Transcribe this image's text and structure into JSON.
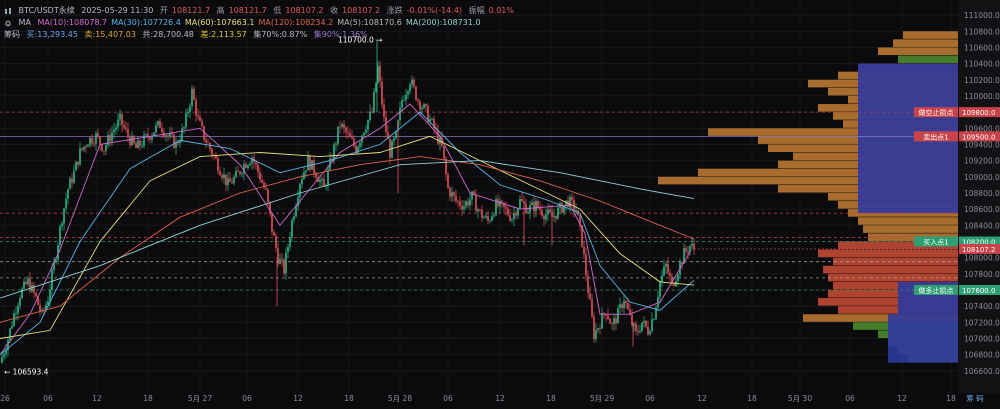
{
  "header": {
    "symbol": "BTC/USDT永续",
    "datetime": "2025-05-29 11:30",
    "open_label": "开",
    "open": "108121.7",
    "high_label": "高",
    "high": "108121.7",
    "low_label": "低",
    "low": "108107.2",
    "close_label": "收",
    "close": "108107.2",
    "change_label": "涨跌",
    "change": "-0.01%(-14.4)",
    "amp_label": "振幅",
    "amp": "0.01%"
  },
  "ma_row": {
    "icon": "bell-icon",
    "label": "MA",
    "items": [
      {
        "text": "MA(10):108078.7",
        "color": "#d36ad0"
      },
      {
        "text": "MA(30):107726.4",
        "color": "#58b6e8"
      },
      {
        "text": "MA(60):107663.1",
        "color": "#e6e07a"
      },
      {
        "text": "MA(120):108234.2",
        "color": "#e0614a"
      },
      {
        "text": "MA(5):108170.6",
        "color": "#b8b8b8"
      },
      {
        "text": "MA(200):108731.0",
        "color": "#8fd3d6"
      }
    ]
  },
  "chip_row": {
    "label": "筹码",
    "buy": "买:13,293.45",
    "sell": "卖:15,407.03",
    "total": "共:28,700.48",
    "diff": "差:2,113.57",
    "c70": "集70%:0.87%",
    "c90": "集90%:1.36%"
  },
  "annotations": {
    "high_marker": "110700.0",
    "low_marker": "← 106593.4"
  },
  "price_tags": [
    {
      "text": "做空止损点",
      "price": 109800,
      "color": "#c9434a",
      "value": "109800.0"
    },
    {
      "text": "卖出点1",
      "price": 109500,
      "color": "#c9434a",
      "value": "109500.0"
    },
    {
      "text": "买入点1",
      "price": 108200,
      "color": "#2e9e74",
      "value": "108200.0"
    },
    {
      "text": "",
      "price": 108107.2,
      "color": "#c9434a",
      "value": "108107.2"
    },
    {
      "text": "做多止损点",
      "price": 107600,
      "color": "#2e9e74",
      "value": "107600.0"
    }
  ],
  "bottom_right_label": "筹 码",
  "chart_data": {
    "type": "candlestick",
    "y_axis": {
      "min": 106400,
      "max": 111100,
      "ticks": [
        106600,
        106800,
        107000,
        107200,
        107400,
        107600,
        107800,
        108000,
        108200,
        108400,
        108600,
        108800,
        109000,
        109200,
        109400,
        109600,
        109800,
        110000,
        110200,
        110400,
        110600,
        110800,
        111000
      ]
    },
    "x_axis": {
      "labels": [
        "26",
        "06",
        "12",
        "18",
        "5月 27",
        "06",
        "12",
        "18",
        "5月 28",
        "06",
        "12",
        "18",
        "5月 29",
        "06",
        "12",
        "18",
        "5月 30",
        "06",
        "12",
        "18"
      ]
    },
    "close_path": [
      [
        0,
        106700
      ],
      [
        8,
        107000
      ],
      [
        14,
        107300
      ],
      [
        20,
        107550
      ],
      [
        28,
        107700
      ],
      [
        36,
        107500
      ],
      [
        42,
        107280
      ],
      [
        48,
        107500
      ],
      [
        56,
        108050
      ],
      [
        62,
        108500
      ],
      [
        68,
        108850
      ],
      [
        74,
        109050
      ],
      [
        80,
        109300
      ],
      [
        88,
        109450
      ],
      [
        96,
        109500
      ],
      [
        104,
        109350
      ],
      [
        112,
        109550
      ],
      [
        120,
        109700
      ],
      [
        128,
        109500
      ],
      [
        136,
        109350
      ],
      [
        144,
        109450
      ],
      [
        152,
        109550
      ],
      [
        160,
        109650
      ],
      [
        168,
        109500
      ],
      [
        176,
        109400
      ],
      [
        184,
        109600
      ],
      [
        192,
        110050
      ],
      [
        198,
        109700
      ],
      [
        204,
        109500
      ],
      [
        212,
        109300
      ],
      [
        220,
        109100
      ],
      [
        228,
        108900
      ],
      [
        236,
        109000
      ],
      [
        244,
        109150
      ],
      [
        252,
        109250
      ],
      [
        260,
        109000
      ],
      [
        266,
        108800
      ],
      [
        272,
        108350
      ],
      [
        278,
        108000
      ],
      [
        284,
        107850
      ],
      [
        292,
        108450
      ],
      [
        300,
        108950
      ],
      [
        308,
        109200
      ],
      [
        316,
        109050
      ],
      [
        324,
        108850
      ],
      [
        332,
        109250
      ],
      [
        340,
        109650
      ],
      [
        348,
        109500
      ],
      [
        356,
        109350
      ],
      [
        364,
        109600
      ],
      [
        372,
        109800
      ],
      [
        378,
        110350
      ],
      [
        384,
        109700
      ],
      [
        390,
        109300
      ],
      [
        396,
        109500
      ],
      [
        402,
        109950
      ],
      [
        410,
        110200
      ],
      [
        418,
        109950
      ],
      [
        426,
        109800
      ],
      [
        434,
        109600
      ],
      [
        442,
        109350
      ],
      [
        448,
        108850
      ],
      [
        456,
        108700
      ],
      [
        464,
        108650
      ],
      [
        472,
        108750
      ],
      [
        480,
        108550
      ],
      [
        488,
        108450
      ],
      [
        496,
        108650
      ],
      [
        504,
        108600
      ],
      [
        512,
        108500
      ],
      [
        520,
        108700
      ],
      [
        528,
        108600
      ],
      [
        536,
        108650
      ],
      [
        544,
        108550
      ],
      [
        552,
        108500
      ],
      [
        560,
        108600
      ],
      [
        568,
        108700
      ],
      [
        576,
        108600
      ],
      [
        582,
        108200
      ],
      [
        588,
        107600
      ],
      [
        594,
        107050
      ],
      [
        600,
        107200
      ],
      [
        606,
        107350
      ],
      [
        612,
        107150
      ],
      [
        618,
        107300
      ],
      [
        624,
        107500
      ],
      [
        630,
        107250
      ],
      [
        636,
        107050
      ],
      [
        642,
        107200
      ],
      [
        648,
        107100
      ],
      [
        654,
        107300
      ],
      [
        660,
        107700
      ],
      [
        666,
        107900
      ],
      [
        672,
        107650
      ],
      [
        678,
        107850
      ],
      [
        684,
        108050
      ],
      [
        690,
        108150
      ],
      [
        694,
        108107
      ]
    ],
    "ma_lines": [
      {
        "name": "MA(10)",
        "color": "#d36ad0",
        "pts": [
          [
            0,
            106800
          ],
          [
            30,
            107300
          ],
          [
            60,
            108100
          ],
          [
            100,
            109400
          ],
          [
            150,
            109500
          ],
          [
            200,
            109600
          ],
          [
            240,
            109150
          ],
          [
            280,
            108400
          ],
          [
            300,
            108700
          ],
          [
            340,
            109300
          ],
          [
            380,
            109600
          ],
          [
            410,
            109900
          ],
          [
            440,
            109500
          ],
          [
            470,
            108800
          ],
          [
            520,
            108600
          ],
          [
            570,
            108650
          ],
          [
            585,
            108300
          ],
          [
            600,
            107300
          ],
          [
            630,
            107300
          ],
          [
            660,
            107450
          ],
          [
            690,
            108070
          ]
        ]
      },
      {
        "name": "MA(30)",
        "color": "#58b6e8",
        "pts": [
          [
            0,
            106800
          ],
          [
            40,
            107200
          ],
          [
            80,
            108200
          ],
          [
            130,
            109100
          ],
          [
            180,
            109450
          ],
          [
            230,
            109350
          ],
          [
            280,
            109050
          ],
          [
            330,
            109200
          ],
          [
            380,
            109400
          ],
          [
            420,
            109800
          ],
          [
            460,
            109300
          ],
          [
            500,
            108900
          ],
          [
            550,
            108700
          ],
          [
            580,
            108550
          ],
          [
            600,
            107900
          ],
          [
            630,
            107450
          ],
          [
            660,
            107350
          ],
          [
            694,
            107720
          ]
        ]
      },
      {
        "name": "MA(60)",
        "color": "#e6e07a",
        "pts": [
          [
            0,
            107000
          ],
          [
            50,
            107100
          ],
          [
            100,
            108200
          ],
          [
            150,
            108950
          ],
          [
            200,
            109250
          ],
          [
            260,
            109300
          ],
          [
            320,
            109250
          ],
          [
            380,
            109300
          ],
          [
            430,
            109500
          ],
          [
            480,
            109200
          ],
          [
            530,
            108900
          ],
          [
            580,
            108600
          ],
          [
            620,
            108050
          ],
          [
            660,
            107700
          ],
          [
            694,
            107660
          ]
        ]
      },
      {
        "name": "MA(120)",
        "color": "#e0614a",
        "pts": [
          [
            0,
            107200
          ],
          [
            60,
            107400
          ],
          [
            120,
            108000
          ],
          [
            180,
            108500
          ],
          [
            240,
            108800
          ],
          [
            300,
            109000
          ],
          [
            360,
            109150
          ],
          [
            420,
            109250
          ],
          [
            480,
            109150
          ],
          [
            540,
            108950
          ],
          [
            600,
            108700
          ],
          [
            650,
            108450
          ],
          [
            694,
            108230
          ]
        ]
      },
      {
        "name": "MA(200)",
        "color": "#8fd3d6",
        "pts": [
          [
            0,
            107500
          ],
          [
            100,
            107900
          ],
          [
            200,
            108400
          ],
          [
            300,
            108800
          ],
          [
            400,
            109150
          ],
          [
            480,
            109200
          ],
          [
            560,
            109050
          ],
          [
            640,
            108850
          ],
          [
            694,
            108730
          ]
        ]
      }
    ],
    "h_lines": [
      {
        "price": 109800,
        "color": "#c9434a",
        "dash": "3,3"
      },
      {
        "price": 109500,
        "color": "#9a7ad0",
        "dash": "0"
      },
      {
        "price": 108550,
        "color": "#c9434a",
        "dash": "3,3"
      },
      {
        "price": 108250,
        "color": "#c9434a",
        "dash": "3,3"
      },
      {
        "price": 108200,
        "color": "#2e9e74",
        "dash": "3,3"
      },
      {
        "price": 107950,
        "color": "#aaaaaa",
        "dash": "3,3"
      },
      {
        "price": 107750,
        "color": "#aaaaaa",
        "dash": "3,3"
      },
      {
        "price": 107600,
        "color": "#2e9e74",
        "dash": "3,3"
      }
    ],
    "chip_profile": [
      {
        "price": 110750,
        "len": 55,
        "color": "#b97732"
      },
      {
        "price": 110650,
        "len": 65,
        "color": "#b97732"
      },
      {
        "price": 110550,
        "len": 80,
        "color": "#b97732"
      },
      {
        "price": 110450,
        "len": 60,
        "color": "#4c8a2e"
      },
      {
        "price": 110350,
        "len": 100,
        "color": "#c04a33"
      },
      {
        "price": 110250,
        "len": 120,
        "color": "#b97732"
      },
      {
        "price": 110150,
        "len": 150,
        "color": "#b97732"
      },
      {
        "price": 110050,
        "len": 130,
        "color": "#b97732"
      },
      {
        "price": 109950,
        "len": 110,
        "color": "#b97732"
      },
      {
        "price": 109850,
        "len": 140,
        "color": "#b97732"
      },
      {
        "price": 109750,
        "len": 125,
        "color": "#b97732"
      },
      {
        "price": 109650,
        "len": 115,
        "color": "#b97732"
      },
      {
        "price": 109550,
        "len": 250,
        "color": "#b97732"
      },
      {
        "price": 109450,
        "len": 200,
        "color": "#b97732"
      },
      {
        "price": 109350,
        "len": 190,
        "color": "#b97732"
      },
      {
        "price": 109250,
        "len": 165,
        "color": "#b97732"
      },
      {
        "price": 109150,
        "len": 180,
        "color": "#b97732"
      },
      {
        "price": 109050,
        "len": 260,
        "color": "#b97732"
      },
      {
        "price": 108950,
        "len": 300,
        "color": "#b97732"
      },
      {
        "price": 108850,
        "len": 180,
        "color": "#b97732"
      },
      {
        "price": 108750,
        "len": 130,
        "color": "#b97732"
      },
      {
        "price": 108650,
        "len": 120,
        "color": "#b97732"
      },
      {
        "price": 108550,
        "len": 110,
        "color": "#b97732"
      },
      {
        "price": 108450,
        "len": 100,
        "color": "#b97732"
      },
      {
        "price": 108350,
        "len": 95,
        "color": "#b97732"
      },
      {
        "price": 108250,
        "len": 90,
        "color": "#b97732"
      },
      {
        "price": 108150,
        "len": 120,
        "color": "#c04a33"
      },
      {
        "price": 108050,
        "len": 140,
        "color": "#c04a33"
      },
      {
        "price": 107950,
        "len": 125,
        "color": "#c04a33"
      },
      {
        "price": 107850,
        "len": 135,
        "color": "#c04a33"
      },
      {
        "price": 107750,
        "len": 130,
        "color": "#c04a33"
      },
      {
        "price": 107650,
        "len": 125,
        "color": "#c04a33"
      },
      {
        "price": 107550,
        "len": 130,
        "color": "#c04a33"
      },
      {
        "price": 107450,
        "len": 140,
        "color": "#c04a33"
      },
      {
        "price": 107350,
        "len": 120,
        "color": "#c04a33"
      },
      {
        "price": 107250,
        "len": 155,
        "color": "#b97732"
      },
      {
        "price": 107150,
        "len": 105,
        "color": "#4c8a2e"
      },
      {
        "price": 107050,
        "len": 80,
        "color": "#4c8a2e"
      },
      {
        "price": 106950,
        "len": 70,
        "color": "#4c8a2e"
      },
      {
        "price": 106850,
        "len": 60,
        "color": "#4c8a2e"
      },
      {
        "price": 106750,
        "len": 50,
        "color": "#4c8a2e"
      }
    ]
  }
}
